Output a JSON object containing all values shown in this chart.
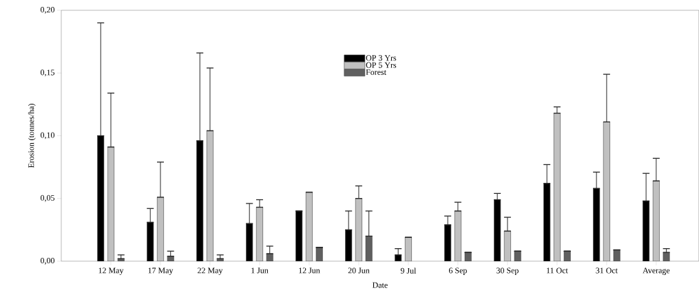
{
  "chart_data": {
    "type": "bar",
    "xlabel": "Date",
    "ylabel": "Erosion (tonnes/ha)",
    "categories": [
      "12 May",
      "17 May",
      "22 May",
      "1 Jun",
      "12 Jun",
      "20 Jun",
      "9 Jul",
      "6 Sep",
      "30 Sep",
      "11 Oct",
      "31 Oct",
      "Average"
    ],
    "series": [
      {
        "name": "OP 3 Yrs",
        "color": "#000000",
        "values": [
          0.1,
          0.031,
          0.096,
          0.03,
          0.04,
          0.025,
          0.005,
          0.029,
          0.049,
          0.062,
          0.058,
          0.048
        ],
        "errors": [
          [
            0.1,
            0.19
          ],
          [
            0.031,
            0.042
          ],
          [
            0.096,
            0.166
          ],
          [
            0.03,
            0.046
          ],
          null,
          [
            0.025,
            0.04
          ],
          [
            0.005,
            0.01
          ],
          [
            0.029,
            0.036
          ],
          [
            0.049,
            0.054
          ],
          [
            0.062,
            0.077
          ],
          [
            0.058,
            0.071
          ],
          [
            0.048,
            0.07
          ]
        ]
      },
      {
        "name": "OP 5 Yrs",
        "color": "#c0c0c0",
        "values": [
          0.091,
          0.051,
          0.104,
          0.043,
          0.055,
          0.05,
          0.019,
          0.04,
          0.024,
          0.118,
          0.111,
          0.064
        ],
        "errors": [
          [
            0.091,
            0.134
          ],
          [
            0.051,
            0.079
          ],
          [
            0.104,
            0.154
          ],
          [
            0.043,
            0.049
          ],
          null,
          [
            0.05,
            0.06
          ],
          null,
          [
            0.04,
            0.047
          ],
          [
            0.024,
            0.035
          ],
          [
            0.118,
            0.123
          ],
          [
            0.111,
            0.149
          ],
          [
            0.064,
            0.082
          ]
        ]
      },
      {
        "name": "Forest",
        "color": "#606060",
        "values": [
          0.002,
          0.004,
          0.002,
          0.006,
          0.011,
          0.02,
          null,
          0.007,
          0.008,
          0.008,
          0.009,
          0.007
        ],
        "errors": [
          [
            0.002,
            0.005
          ],
          [
            0.004,
            0.008
          ],
          [
            0.002,
            0.005
          ],
          [
            0.006,
            0.012
          ],
          null,
          [
            0.02,
            0.04
          ],
          null,
          null,
          null,
          null,
          null,
          [
            0.007,
            0.01
          ]
        ]
      }
    ],
    "ylim": [
      0,
      0.2
    ],
    "yticks": [
      {
        "value": 0,
        "label": "0,00"
      },
      {
        "value": 0.05,
        "label": "0,05"
      },
      {
        "value": 0.1,
        "label": "0,10"
      },
      {
        "value": 0.15,
        "label": "0,15"
      },
      {
        "value": 0.2,
        "label": "0,20"
      }
    ],
    "legend": "top",
    "grid": false
  }
}
